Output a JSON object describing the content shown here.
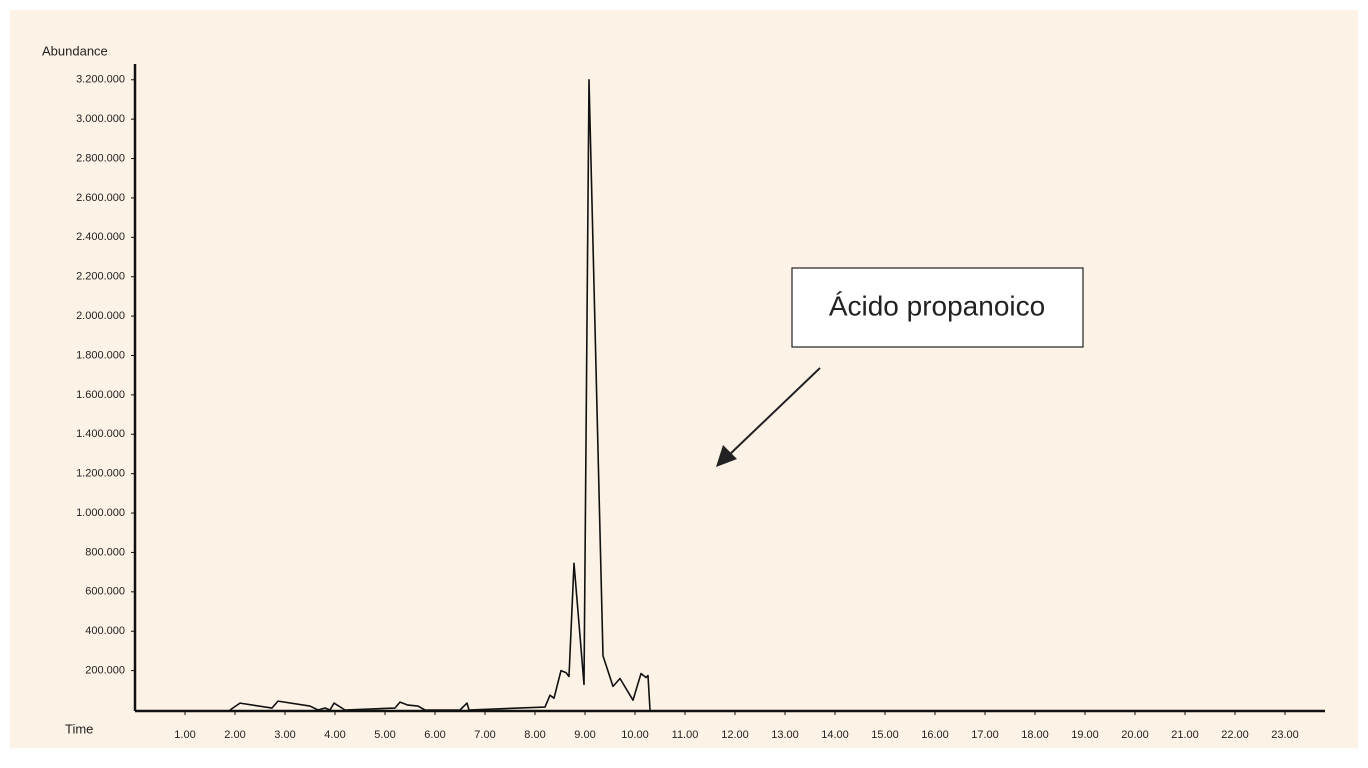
{
  "chart_data": {
    "type": "line",
    "y_label": "Abundance",
    "x_label": "Time",
    "annotation": "Ácido propanoico",
    "x": [
      1.9,
      2.1,
      2.74,
      2.86,
      3.5,
      3.66,
      3.8,
      3.9,
      3.98,
      4.2,
      5.2,
      5.3,
      5.46,
      5.66,
      5.8,
      6.5,
      6.64,
      6.68,
      8.2,
      8.3,
      8.38,
      8.52,
      8.62,
      8.68,
      8.78,
      8.98,
      9.08,
      9.36,
      9.56,
      9.7,
      9.96,
      10.12,
      10.22,
      10.26,
      10.3
    ],
    "series": [
      {
        "color": "#111111",
        "values": [
          0,
          35000,
          10000,
          45000,
          20000,
          0,
          10000,
          0,
          35000,
          0,
          10000,
          40000,
          25000,
          20000,
          0,
          0,
          35000,
          0,
          15000,
          75000,
          60000,
          200000,
          190000,
          170000,
          745000,
          130000,
          3200000,
          275000,
          120000,
          160000,
          50000,
          185000,
          165000,
          175000,
          0
        ]
      }
    ],
    "xlim": [
      0,
      23.8
    ],
    "ylim": [
      0,
      3280000
    ],
    "xticks": [
      {
        "value": 1,
        "label": "1.00"
      },
      {
        "value": 2,
        "label": "2.00"
      },
      {
        "value": 3,
        "label": "3.00"
      },
      {
        "value": 4,
        "label": "4.00"
      },
      {
        "value": 5,
        "label": "5.00"
      },
      {
        "value": 6,
        "label": "6.00"
      },
      {
        "value": 7,
        "label": "7.00"
      },
      {
        "value": 8,
        "label": "8.00"
      },
      {
        "value": 9,
        "label": "9.00"
      },
      {
        "value": 10,
        "label": "10.00"
      },
      {
        "value": 11,
        "label": "11.00"
      },
      {
        "value": 12,
        "label": "12.00"
      },
      {
        "value": 13,
        "label": "13.00"
      },
      {
        "value": 14,
        "label": "14.00"
      },
      {
        "value": 15,
        "label": "15.00"
      },
      {
        "value": 16,
        "label": "16.00"
      },
      {
        "value": 17,
        "label": "17.00"
      },
      {
        "value": 18,
        "label": "18.00"
      },
      {
        "value": 19,
        "label": "19.00"
      },
      {
        "value": 20,
        "label": "20.00"
      },
      {
        "value": 21,
        "label": "21.00"
      },
      {
        "value": 22,
        "label": "22.00"
      },
      {
        "value": 23,
        "label": "23.00"
      }
    ],
    "yticks": [
      {
        "value": 200000,
        "label": "200.000"
      },
      {
        "value": 400000,
        "label": "400.000"
      },
      {
        "value": 600000,
        "label": "600.000"
      },
      {
        "value": 800000,
        "label": "800.000"
      },
      {
        "value": 1000000,
        "label": "1.000.000"
      },
      {
        "value": 1200000,
        "label": "1.200.000"
      },
      {
        "value": 1400000,
        "label": "1.400.000"
      },
      {
        "value": 1600000,
        "label": "1.600.000"
      },
      {
        "value": 1800000,
        "label": "1.800.000"
      },
      {
        "value": 2000000,
        "label": "2.000.000"
      },
      {
        "value": 2200000,
        "label": "2.200.000"
      },
      {
        "value": 2400000,
        "label": "2.400.000"
      },
      {
        "value": 2600000,
        "label": "2.600.000"
      },
      {
        "value": 2800000,
        "label": "2.800.000"
      },
      {
        "value": 3000000,
        "label": "3.000.000"
      },
      {
        "value": 3200000,
        "label": "3.200.000"
      }
    ],
    "grid": false
  }
}
